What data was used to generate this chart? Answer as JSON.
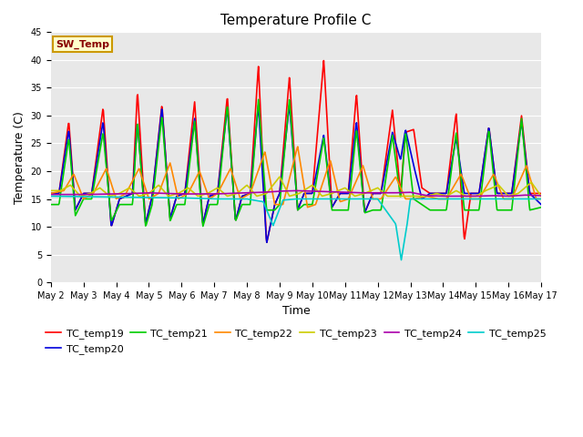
{
  "title": "Temperature Profile C",
  "xlabel": "Time",
  "ylabel": "Temperature (C)",
  "ylim": [
    0,
    45
  ],
  "xlim": [
    0,
    15
  ],
  "xtick_labels": [
    "May 2",
    "May 3",
    "May 4",
    "May 5",
    "May 6",
    "May 7",
    "May 8",
    "May 9",
    "May 10",
    "May 11",
    "May 12",
    "May 13",
    "May 14",
    "May 15",
    "May 16",
    "May 17"
  ],
  "xtick_positions": [
    0,
    1,
    2,
    3,
    4,
    5,
    6,
    7,
    8,
    9,
    10,
    11,
    12,
    13,
    14,
    15
  ],
  "ytick_positions": [
    0,
    5,
    10,
    15,
    20,
    25,
    30,
    35,
    40,
    45
  ],
  "plot_bg_color": "#e8e8e8",
  "grid_color": "white",
  "sw_temp_label": "SW_Temp",
  "sw_temp_box_color": "#ffffcc",
  "sw_temp_edge_color": "#cc9900",
  "sw_temp_text_color": "#880000",
  "series": {
    "TC_temp19": {
      "color": "#ff0000",
      "lw": 1.2
    },
    "TC_temp20": {
      "color": "#0000dd",
      "lw": 1.2
    },
    "TC_temp21": {
      "color": "#00cc00",
      "lw": 1.2
    },
    "TC_temp22": {
      "color": "#ff8800",
      "lw": 1.2
    },
    "TC_temp23": {
      "color": "#cccc00",
      "lw": 1.2
    },
    "TC_temp24": {
      "color": "#aa00aa",
      "lw": 1.2
    },
    "TC_temp25": {
      "color": "#00cccc",
      "lw": 1.2
    }
  },
  "title_fontsize": 11,
  "axis_label_fontsize": 9,
  "tick_fontsize": 7,
  "legend_fontsize": 8,
  "pts19": [
    [
      0.0,
      16.0
    ],
    [
      0.25,
      16.0
    ],
    [
      0.55,
      29.0
    ],
    [
      0.75,
      13.0
    ],
    [
      1.0,
      16.0
    ],
    [
      1.25,
      16.0
    ],
    [
      1.6,
      31.5
    ],
    [
      1.85,
      10.0
    ],
    [
      2.1,
      15.0
    ],
    [
      2.5,
      16.0
    ],
    [
      2.65,
      34.5
    ],
    [
      2.9,
      10.5
    ],
    [
      3.1,
      15.5
    ],
    [
      3.4,
      32.0
    ],
    [
      3.65,
      11.5
    ],
    [
      3.85,
      15.5
    ],
    [
      4.1,
      16.0
    ],
    [
      4.4,
      32.5
    ],
    [
      4.65,
      10.5
    ],
    [
      4.85,
      15.5
    ],
    [
      5.1,
      16.0
    ],
    [
      5.4,
      33.5
    ],
    [
      5.65,
      11.0
    ],
    [
      5.85,
      15.5
    ],
    [
      6.1,
      16.0
    ],
    [
      6.35,
      39.0
    ],
    [
      6.6,
      7.0
    ],
    [
      6.85,
      14.0
    ],
    [
      7.0,
      16.0
    ],
    [
      7.3,
      37.0
    ],
    [
      7.55,
      13.0
    ],
    [
      7.75,
      16.0
    ],
    [
      8.0,
      16.0
    ],
    [
      8.35,
      40.0
    ],
    [
      8.6,
      13.5
    ],
    [
      8.85,
      16.0
    ],
    [
      9.1,
      16.0
    ],
    [
      9.35,
      34.0
    ],
    [
      9.6,
      12.5
    ],
    [
      9.85,
      16.0
    ],
    [
      10.1,
      16.0
    ],
    [
      10.45,
      31.0
    ],
    [
      10.7,
      16.0
    ],
    [
      10.85,
      27.0
    ],
    [
      11.1,
      27.5
    ],
    [
      11.35,
      17.0
    ],
    [
      11.6,
      16.0
    ],
    [
      11.85,
      16.0
    ],
    [
      12.1,
      16.0
    ],
    [
      12.4,
      30.5
    ],
    [
      12.65,
      7.5
    ],
    [
      12.85,
      16.0
    ],
    [
      13.1,
      16.0
    ],
    [
      13.4,
      28.0
    ],
    [
      13.65,
      16.0
    ],
    [
      13.85,
      16.0
    ],
    [
      14.1,
      16.0
    ],
    [
      14.4,
      30.0
    ],
    [
      14.65,
      16.0
    ],
    [
      15.0,
      16.0
    ]
  ],
  "pts20": [
    [
      0.0,
      16.0
    ],
    [
      0.25,
      16.0
    ],
    [
      0.55,
      27.5
    ],
    [
      0.75,
      13.0
    ],
    [
      1.0,
      16.0
    ],
    [
      1.25,
      16.0
    ],
    [
      1.6,
      29.0
    ],
    [
      1.85,
      10.0
    ],
    [
      2.1,
      15.0
    ],
    [
      2.5,
      16.0
    ],
    [
      2.65,
      29.0
    ],
    [
      2.9,
      10.5
    ],
    [
      3.1,
      15.5
    ],
    [
      3.4,
      31.5
    ],
    [
      3.65,
      11.5
    ],
    [
      3.85,
      15.5
    ],
    [
      4.1,
      16.0
    ],
    [
      4.4,
      29.5
    ],
    [
      4.65,
      10.5
    ],
    [
      4.85,
      15.5
    ],
    [
      5.1,
      16.0
    ],
    [
      5.4,
      31.5
    ],
    [
      5.65,
      11.0
    ],
    [
      5.85,
      15.5
    ],
    [
      6.1,
      16.0
    ],
    [
      6.35,
      32.0
    ],
    [
      6.6,
      7.0
    ],
    [
      6.85,
      14.0
    ],
    [
      7.0,
      16.0
    ],
    [
      7.3,
      32.0
    ],
    [
      7.55,
      13.0
    ],
    [
      7.75,
      16.0
    ],
    [
      8.0,
      16.0
    ],
    [
      8.35,
      26.5
    ],
    [
      8.6,
      13.5
    ],
    [
      8.85,
      16.0
    ],
    [
      9.1,
      16.0
    ],
    [
      9.35,
      29.0
    ],
    [
      9.6,
      12.5
    ],
    [
      9.85,
      16.0
    ],
    [
      10.1,
      16.0
    ],
    [
      10.45,
      27.0
    ],
    [
      10.7,
      22.0
    ],
    [
      10.85,
      27.5
    ],
    [
      11.1,
      21.0
    ],
    [
      11.35,
      15.0
    ],
    [
      11.6,
      16.0
    ],
    [
      11.85,
      16.0
    ],
    [
      12.1,
      16.0
    ],
    [
      12.4,
      26.0
    ],
    [
      12.65,
      16.0
    ],
    [
      12.85,
      16.0
    ],
    [
      13.1,
      16.0
    ],
    [
      13.4,
      28.0
    ],
    [
      13.65,
      16.0
    ],
    [
      13.85,
      16.0
    ],
    [
      14.1,
      16.0
    ],
    [
      14.4,
      29.0
    ],
    [
      14.65,
      16.0
    ],
    [
      15.0,
      14.0
    ]
  ],
  "pts21": [
    [
      0.0,
      14.0
    ],
    [
      0.25,
      14.0
    ],
    [
      0.55,
      26.0
    ],
    [
      0.75,
      12.0
    ],
    [
      1.0,
      15.0
    ],
    [
      1.25,
      15.0
    ],
    [
      1.6,
      27.0
    ],
    [
      1.85,
      11.0
    ],
    [
      2.1,
      14.0
    ],
    [
      2.5,
      14.0
    ],
    [
      2.65,
      29.0
    ],
    [
      2.9,
      10.0
    ],
    [
      3.1,
      14.0
    ],
    [
      3.4,
      30.0
    ],
    [
      3.65,
      11.0
    ],
    [
      3.85,
      14.0
    ],
    [
      4.1,
      14.0
    ],
    [
      4.4,
      29.0
    ],
    [
      4.65,
      10.0
    ],
    [
      4.85,
      14.0
    ],
    [
      5.1,
      14.0
    ],
    [
      5.4,
      32.0
    ],
    [
      5.65,
      11.0
    ],
    [
      5.85,
      14.0
    ],
    [
      6.1,
      14.0
    ],
    [
      6.35,
      33.0
    ],
    [
      6.6,
      13.0
    ],
    [
      6.85,
      13.0
    ],
    [
      7.0,
      14.0
    ],
    [
      7.3,
      33.0
    ],
    [
      7.55,
      13.0
    ],
    [
      7.75,
      14.0
    ],
    [
      8.0,
      14.0
    ],
    [
      8.35,
      26.0
    ],
    [
      8.6,
      13.0
    ],
    [
      8.85,
      13.0
    ],
    [
      9.1,
      13.0
    ],
    [
      9.35,
      27.5
    ],
    [
      9.6,
      12.5
    ],
    [
      9.85,
      13.0
    ],
    [
      10.1,
      13.0
    ],
    [
      10.45,
      26.5
    ],
    [
      10.7,
      15.0
    ],
    [
      10.85,
      27.0
    ],
    [
      11.1,
      15.0
    ],
    [
      11.35,
      14.0
    ],
    [
      11.6,
      13.0
    ],
    [
      11.85,
      13.0
    ],
    [
      12.1,
      13.0
    ],
    [
      12.4,
      27.0
    ],
    [
      12.65,
      13.0
    ],
    [
      12.85,
      13.0
    ],
    [
      13.1,
      13.0
    ],
    [
      13.4,
      27.5
    ],
    [
      13.65,
      13.0
    ],
    [
      13.85,
      13.0
    ],
    [
      14.1,
      13.0
    ],
    [
      14.4,
      29.5
    ],
    [
      14.65,
      13.0
    ],
    [
      15.0,
      13.5
    ]
  ],
  "pts22": [
    [
      0.0,
      16.0
    ],
    [
      0.4,
      16.5
    ],
    [
      0.7,
      19.5
    ],
    [
      1.0,
      15.0
    ],
    [
      1.3,
      16.0
    ],
    [
      1.7,
      20.5
    ],
    [
      2.0,
      15.0
    ],
    [
      2.3,
      16.0
    ],
    [
      2.7,
      20.5
    ],
    [
      3.0,
      15.0
    ],
    [
      3.3,
      16.0
    ],
    [
      3.65,
      21.5
    ],
    [
      3.9,
      15.0
    ],
    [
      4.2,
      16.0
    ],
    [
      4.55,
      20.0
    ],
    [
      4.85,
      15.0
    ],
    [
      5.1,
      16.0
    ],
    [
      5.5,
      20.5
    ],
    [
      5.8,
      15.0
    ],
    [
      6.1,
      16.0
    ],
    [
      6.55,
      23.5
    ],
    [
      6.85,
      14.0
    ],
    [
      7.1,
      14.0
    ],
    [
      7.55,
      24.5
    ],
    [
      7.85,
      13.5
    ],
    [
      8.1,
      14.0
    ],
    [
      8.55,
      22.0
    ],
    [
      8.85,
      14.5
    ],
    [
      9.1,
      15.0
    ],
    [
      9.55,
      21.0
    ],
    [
      9.85,
      15.0
    ],
    [
      10.1,
      15.0
    ],
    [
      10.55,
      19.0
    ],
    [
      10.85,
      15.0
    ],
    [
      11.1,
      15.0
    ],
    [
      11.5,
      15.5
    ],
    [
      11.85,
      15.0
    ],
    [
      12.1,
      15.0
    ],
    [
      12.55,
      19.5
    ],
    [
      12.85,
      15.0
    ],
    [
      13.1,
      15.0
    ],
    [
      13.55,
      19.5
    ],
    [
      13.85,
      15.0
    ],
    [
      14.1,
      15.0
    ],
    [
      14.55,
      21.0
    ],
    [
      14.85,
      15.0
    ],
    [
      15.0,
      15.0
    ]
  ],
  "pts23": [
    [
      0.0,
      16.5
    ],
    [
      0.3,
      16.5
    ],
    [
      0.6,
      17.5
    ],
    [
      0.9,
      15.5
    ],
    [
      1.2,
      16.0
    ],
    [
      1.5,
      17.0
    ],
    [
      1.8,
      15.5
    ],
    [
      2.1,
      16.0
    ],
    [
      2.4,
      17.0
    ],
    [
      2.7,
      15.5
    ],
    [
      3.0,
      16.0
    ],
    [
      3.3,
      17.5
    ],
    [
      3.6,
      15.5
    ],
    [
      3.9,
      16.0
    ],
    [
      4.2,
      17.0
    ],
    [
      4.5,
      15.5
    ],
    [
      4.8,
      16.0
    ],
    [
      5.1,
      17.0
    ],
    [
      5.4,
      15.5
    ],
    [
      5.7,
      16.0
    ],
    [
      6.0,
      17.5
    ],
    [
      6.3,
      15.5
    ],
    [
      6.6,
      16.0
    ],
    [
      7.0,
      19.0
    ],
    [
      7.3,
      15.5
    ],
    [
      7.6,
      16.0
    ],
    [
      8.0,
      17.5
    ],
    [
      8.3,
      15.5
    ],
    [
      8.6,
      16.0
    ],
    [
      9.0,
      17.0
    ],
    [
      9.3,
      15.5
    ],
    [
      9.6,
      16.0
    ],
    [
      10.0,
      17.0
    ],
    [
      10.3,
      15.5
    ],
    [
      10.6,
      15.5
    ],
    [
      10.9,
      15.5
    ],
    [
      11.2,
      15.5
    ],
    [
      11.5,
      15.5
    ],
    [
      11.8,
      16.0
    ],
    [
      12.1,
      15.5
    ],
    [
      12.4,
      16.5
    ],
    [
      12.7,
      15.5
    ],
    [
      13.0,
      15.5
    ],
    [
      13.3,
      16.5
    ],
    [
      13.7,
      17.5
    ],
    [
      14.0,
      15.5
    ],
    [
      14.3,
      16.0
    ],
    [
      14.7,
      18.0
    ],
    [
      15.0,
      15.5
    ]
  ],
  "pts24": [
    [
      0.0,
      15.8
    ],
    [
      1.0,
      15.8
    ],
    [
      2.0,
      15.9
    ],
    [
      3.0,
      16.1
    ],
    [
      4.0,
      15.9
    ],
    [
      5.0,
      15.9
    ],
    [
      6.0,
      16.1
    ],
    [
      6.5,
      16.2
    ],
    [
      7.0,
      16.4
    ],
    [
      7.5,
      16.5
    ],
    [
      8.0,
      16.4
    ],
    [
      8.5,
      16.3
    ],
    [
      9.0,
      16.2
    ],
    [
      9.5,
      16.1
    ],
    [
      10.0,
      16.1
    ],
    [
      10.5,
      16.1
    ],
    [
      11.0,
      16.2
    ],
    [
      11.5,
      15.6
    ],
    [
      12.0,
      15.5
    ],
    [
      12.5,
      15.5
    ],
    [
      13.0,
      15.5
    ],
    [
      13.5,
      15.6
    ],
    [
      14.0,
      15.5
    ],
    [
      14.5,
      15.7
    ],
    [
      15.0,
      15.6
    ]
  ],
  "pts25": [
    [
      0.0,
      15.5
    ],
    [
      4.0,
      15.2
    ],
    [
      5.0,
      15.0
    ],
    [
      6.0,
      15.0
    ],
    [
      6.5,
      14.5
    ],
    [
      6.8,
      10.2
    ],
    [
      7.1,
      14.8
    ],
    [
      7.5,
      15.0
    ],
    [
      8.0,
      15.0
    ],
    [
      9.0,
      15.0
    ],
    [
      10.0,
      15.0
    ],
    [
      10.55,
      10.5
    ],
    [
      10.72,
      4.0
    ],
    [
      10.9,
      10.5
    ],
    [
      11.0,
      15.0
    ],
    [
      12.0,
      15.0
    ],
    [
      13.0,
      15.0
    ],
    [
      14.0,
      15.0
    ],
    [
      15.0,
      15.0
    ]
  ]
}
